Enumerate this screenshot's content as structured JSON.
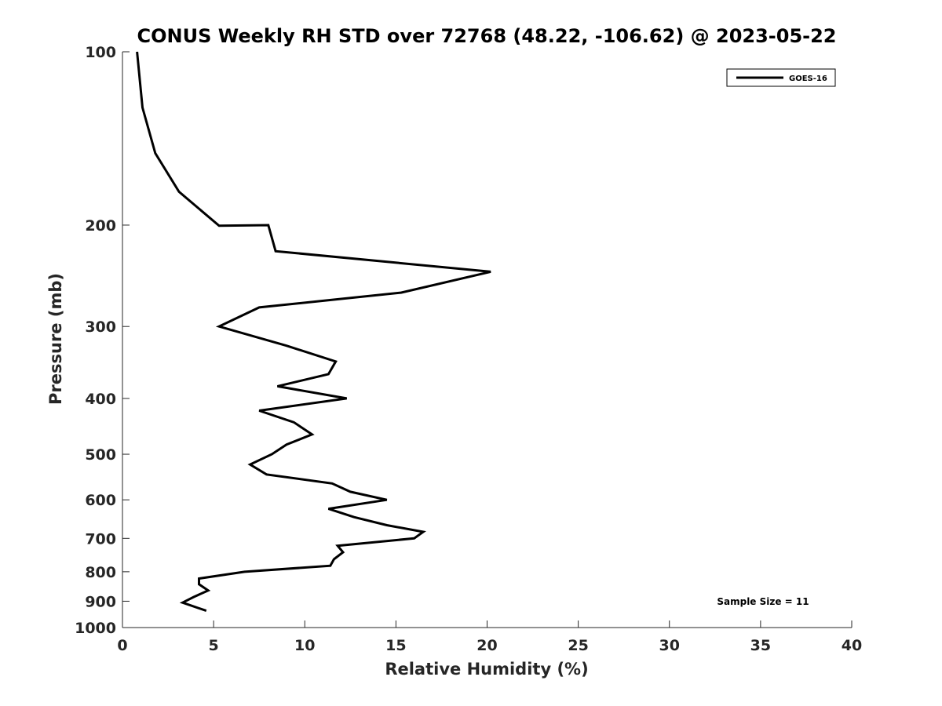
{
  "chart_data": {
    "type": "line",
    "title": "CONUS Weekly RH STD over 72768 (48.22, -106.62) @ 2023-05-22",
    "xlabel": "Relative Humidity (%)",
    "ylabel": "Pressure (mb)",
    "xlim": [
      0,
      40
    ],
    "ylim": [
      100,
      1000
    ],
    "y_scale": "log",
    "y_reversed": true,
    "grid": false,
    "legend_position": "top-right",
    "x_ticks": [
      "0",
      "5",
      "10",
      "15",
      "20",
      "25",
      "30",
      "35",
      "40"
    ],
    "y_ticks": [
      "100",
      "200",
      "300",
      "400",
      "500",
      "600",
      "700",
      "800",
      "900",
      "1000"
    ],
    "annotation": "Sample Size = 11",
    "series": [
      {
        "name": "GOES-16",
        "color": "#000000",
        "points": [
          [
            0.8,
            100
          ],
          [
            1.1,
            125
          ],
          [
            1.8,
            150
          ],
          [
            3.1,
            175
          ],
          [
            5.3,
            200.5
          ],
          [
            8.0,
            200
          ],
          [
            8.4,
            222
          ],
          [
            20.2,
            241
          ],
          [
            15.3,
            262
          ],
          [
            7.5,
            278
          ],
          [
            5.3,
            300
          ],
          [
            9.0,
            324
          ],
          [
            11.7,
            345
          ],
          [
            11.3,
            363
          ],
          [
            8.5,
            381
          ],
          [
            12.3,
            400
          ],
          [
            7.5,
            420
          ],
          [
            9.4,
            440
          ],
          [
            10.4,
            462
          ],
          [
            9.0,
            481
          ],
          [
            8.2,
            500
          ],
          [
            7.0,
            521
          ],
          [
            7.9,
            542
          ],
          [
            11.5,
            562
          ],
          [
            12.5,
            581
          ],
          [
            14.5,
            600
          ],
          [
            11.3,
            622
          ],
          [
            12.7,
            643
          ],
          [
            14.5,
            664
          ],
          [
            16.5,
            682
          ],
          [
            16.0,
            700
          ],
          [
            11.8,
            721
          ],
          [
            12.1,
            740
          ],
          [
            11.6,
            761
          ],
          [
            11.4,
            781
          ],
          [
            6.7,
            800
          ],
          [
            4.2,
            822
          ],
          [
            4.2,
            841
          ],
          [
            4.7,
            862
          ],
          [
            3.9,
            885
          ],
          [
            3.3,
            905
          ],
          [
            4.6,
            935
          ]
        ]
      }
    ]
  }
}
